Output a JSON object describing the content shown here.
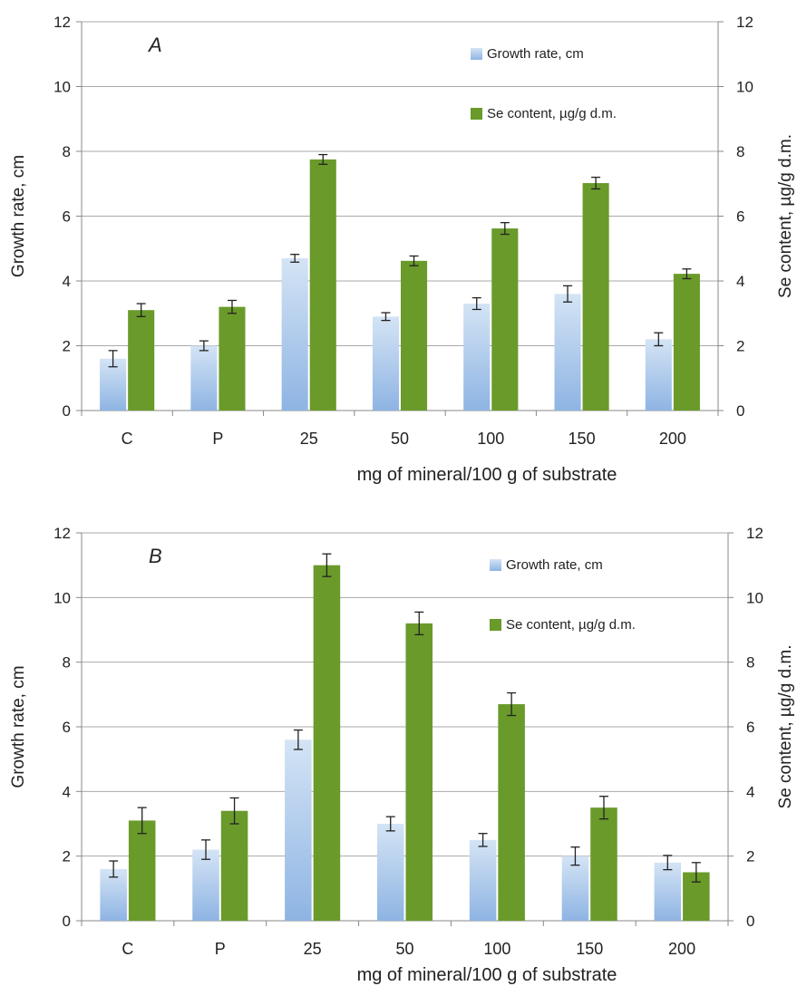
{
  "colors": {
    "growth_top": "#d4e4f5",
    "growth_bottom": "#8eb4e3",
    "se": "#6a9a2a",
    "grid": "#a9a9a9",
    "axis": "#888888",
    "text": "#222222"
  },
  "chart_data": [
    {
      "type": "bar",
      "panel_label": "A",
      "categories": [
        "C",
        "P",
        "25",
        "50",
        "100",
        "150",
        "200"
      ],
      "xlabel": "mg of mineral/100 g of substrate",
      "ylabel": "Growth rate, cm",
      "y2label": "Se content, µg/g d.m.",
      "ylim": [
        0,
        12
      ],
      "y2lim": [
        0,
        12
      ],
      "yticks": [
        0,
        2,
        4,
        6,
        8,
        10,
        12
      ],
      "grid": true,
      "legend_position": "top-right",
      "series": [
        {
          "name": "Growth rate, cm",
          "axis": "left",
          "values": [
            1.6,
            2.0,
            4.7,
            2.9,
            3.3,
            3.6,
            2.2
          ],
          "errors": [
            0.25,
            0.15,
            0.12,
            0.12,
            0.18,
            0.25,
            0.2
          ]
        },
        {
          "name": "Se content, µg/g d.m.",
          "axis": "right",
          "values": [
            3.1,
            3.2,
            7.75,
            4.62,
            5.62,
            7.02,
            4.22
          ],
          "errors": [
            0.2,
            0.2,
            0.15,
            0.15,
            0.18,
            0.18,
            0.15
          ]
        }
      ]
    },
    {
      "type": "bar",
      "panel_label": "B",
      "categories": [
        "C",
        "P",
        "25",
        "50",
        "100",
        "150",
        "200"
      ],
      "xlabel": "mg of mineral/100 g of substrate",
      "ylabel": "Growth rate, cm",
      "y2label": "Se content, µg/g d.m.",
      "ylim": [
        0,
        12
      ],
      "y2lim": [
        0,
        12
      ],
      "yticks": [
        0,
        2,
        4,
        6,
        8,
        10,
        12
      ],
      "grid": true,
      "legend_position": "top-right",
      "series": [
        {
          "name": "Growth rate, cm",
          "axis": "left",
          "values": [
            1.6,
            2.2,
            5.6,
            3.0,
            2.5,
            2.0,
            1.8
          ],
          "errors": [
            0.25,
            0.3,
            0.3,
            0.22,
            0.2,
            0.28,
            0.22
          ]
        },
        {
          "name": "Se content, µg/g d.m.",
          "axis": "right",
          "values": [
            3.1,
            3.4,
            11.0,
            9.2,
            6.7,
            3.5,
            1.5
          ],
          "errors": [
            0.4,
            0.4,
            0.35,
            0.35,
            0.35,
            0.35,
            0.3
          ]
        }
      ]
    }
  ]
}
